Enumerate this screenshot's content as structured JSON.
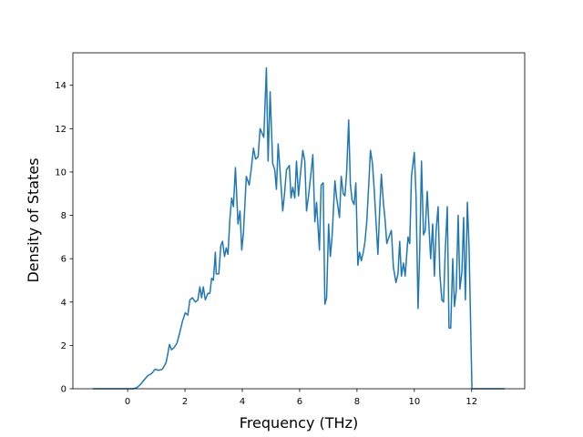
{
  "chart_data": {
    "type": "line",
    "x_label": "Frequency (THz)",
    "y_label": "Density of States",
    "x": [
      -1.21,
      0.19,
      0.32,
      0.45,
      0.57,
      0.7,
      0.83,
      0.96,
      1.08,
      1.21,
      1.34,
      1.4,
      1.46,
      1.53,
      1.62,
      1.72,
      1.82,
      1.91,
      2.01,
      2.1,
      2.17,
      2.26,
      2.36,
      2.45,
      2.52,
      2.58,
      2.64,
      2.71,
      2.8,
      2.87,
      2.93,
      2.99,
      3.06,
      3.09,
      3.18,
      3.25,
      3.31,
      3.38,
      3.44,
      3.5,
      3.57,
      3.63,
      3.69,
      3.76,
      3.85,
      3.92,
      3.98,
      4.04,
      4.14,
      4.24,
      4.3,
      4.39,
      4.46,
      4.55,
      4.62,
      4.75,
      4.84,
      4.9,
      4.97,
      5.06,
      5.13,
      5.19,
      5.25,
      5.35,
      5.41,
      5.48,
      5.54,
      5.64,
      5.7,
      5.76,
      5.83,
      5.89,
      5.96,
      6.02,
      6.11,
      6.18,
      6.24,
      6.31,
      6.4,
      6.46,
      6.53,
      6.59,
      6.69,
      6.75,
      6.82,
      6.88,
      6.94,
      7.01,
      7.07,
      7.13,
      7.23,
      7.29,
      7.39,
      7.45,
      7.52,
      7.58,
      7.64,
      7.71,
      7.77,
      7.83,
      7.9,
      7.96,
      8.03,
      8.09,
      8.15,
      8.22,
      8.28,
      8.34,
      8.41,
      8.47,
      8.54,
      8.6,
      8.66,
      8.73,
      8.79,
      8.85,
      8.92,
      8.98,
      9.04,
      9.14,
      9.2,
      9.27,
      9.36,
      9.43,
      9.49,
      9.55,
      9.62,
      9.68,
      9.78,
      9.84,
      9.9,
      10.0,
      10.06,
      10.13,
      10.19,
      10.25,
      10.32,
      10.38,
      10.45,
      10.51,
      10.57,
      10.64,
      10.7,
      10.76,
      10.83,
      10.89,
      10.96,
      11.02,
      11.08,
      11.15,
      11.21,
      11.27,
      11.34,
      11.4,
      11.46,
      11.53,
      11.59,
      11.66,
      11.72,
      11.78,
      11.85,
      11.91,
      12.01,
      13.15
    ],
    "series": [
      {
        "color": "#1f77b4",
        "values": [
          0,
          0,
          0.05,
          0.2,
          0.4,
          0.6,
          0.7,
          0.9,
          0.85,
          0.9,
          1.2,
          1.6,
          2.05,
          1.8,
          1.9,
          2.1,
          2.6,
          3.1,
          3.5,
          3.4,
          4.1,
          4.2,
          4.0,
          4.1,
          4.7,
          4.2,
          4.7,
          4.1,
          4.4,
          4.4,
          5.1,
          5.0,
          6.3,
          5.3,
          5.3,
          6.6,
          6.8,
          6.1,
          6.5,
          6.2,
          7.9,
          8.8,
          8.4,
          10.2,
          7.6,
          8.2,
          6.4,
          7.2,
          9.8,
          9.4,
          10.0,
          11.1,
          10.6,
          10.7,
          12.0,
          11.6,
          14.8,
          10.5,
          13.7,
          10.4,
          10.1,
          9.2,
          11.3,
          9.4,
          8.2,
          9.1,
          10.1,
          10.3,
          8.8,
          9.3,
          8.8,
          10.5,
          8.9,
          9.8,
          11.0,
          10.5,
          8.2,
          8.9,
          10.0,
          10.8,
          7.7,
          8.6,
          6.4,
          9.4,
          9.5,
          3.9,
          4.2,
          7.6,
          6.1,
          7.0,
          9.6,
          8.8,
          7.9,
          9.8,
          9.0,
          8.9,
          10.0,
          12.4,
          9.4,
          8.7,
          8.5,
          9.5,
          5.7,
          6.3,
          5.9,
          6.3,
          6.8,
          7.7,
          9.4,
          11.0,
          10.4,
          9.2,
          7.8,
          6.2,
          8.2,
          9.9,
          8.6,
          7.8,
          6.7,
          7.1,
          7.3,
          5.6,
          4.9,
          5.3,
          6.8,
          5.2,
          5.8,
          5.2,
          7.0,
          6.7,
          9.8,
          10.9,
          8.9,
          3.7,
          6.5,
          10.5,
          7.1,
          7.3,
          9.1,
          7.5,
          6.0,
          7.6,
          5.2,
          7.3,
          8.4,
          5.3,
          4.1,
          4.0,
          6.4,
          8.4,
          2.8,
          2.8,
          6.0,
          3.8,
          4.5,
          8.0,
          4.6,
          5.4,
          7.9,
          4.1,
          8.6,
          6.5,
          0,
          0
        ]
      }
    ],
    "xlim": [
      -1.91,
      13.85
    ],
    "ylim": [
      0,
      15.5
    ],
    "xticks": [
      0,
      2,
      4,
      6,
      8,
      10,
      12
    ],
    "yticks": [
      0,
      2,
      4,
      6,
      8,
      10,
      12,
      14
    ]
  }
}
